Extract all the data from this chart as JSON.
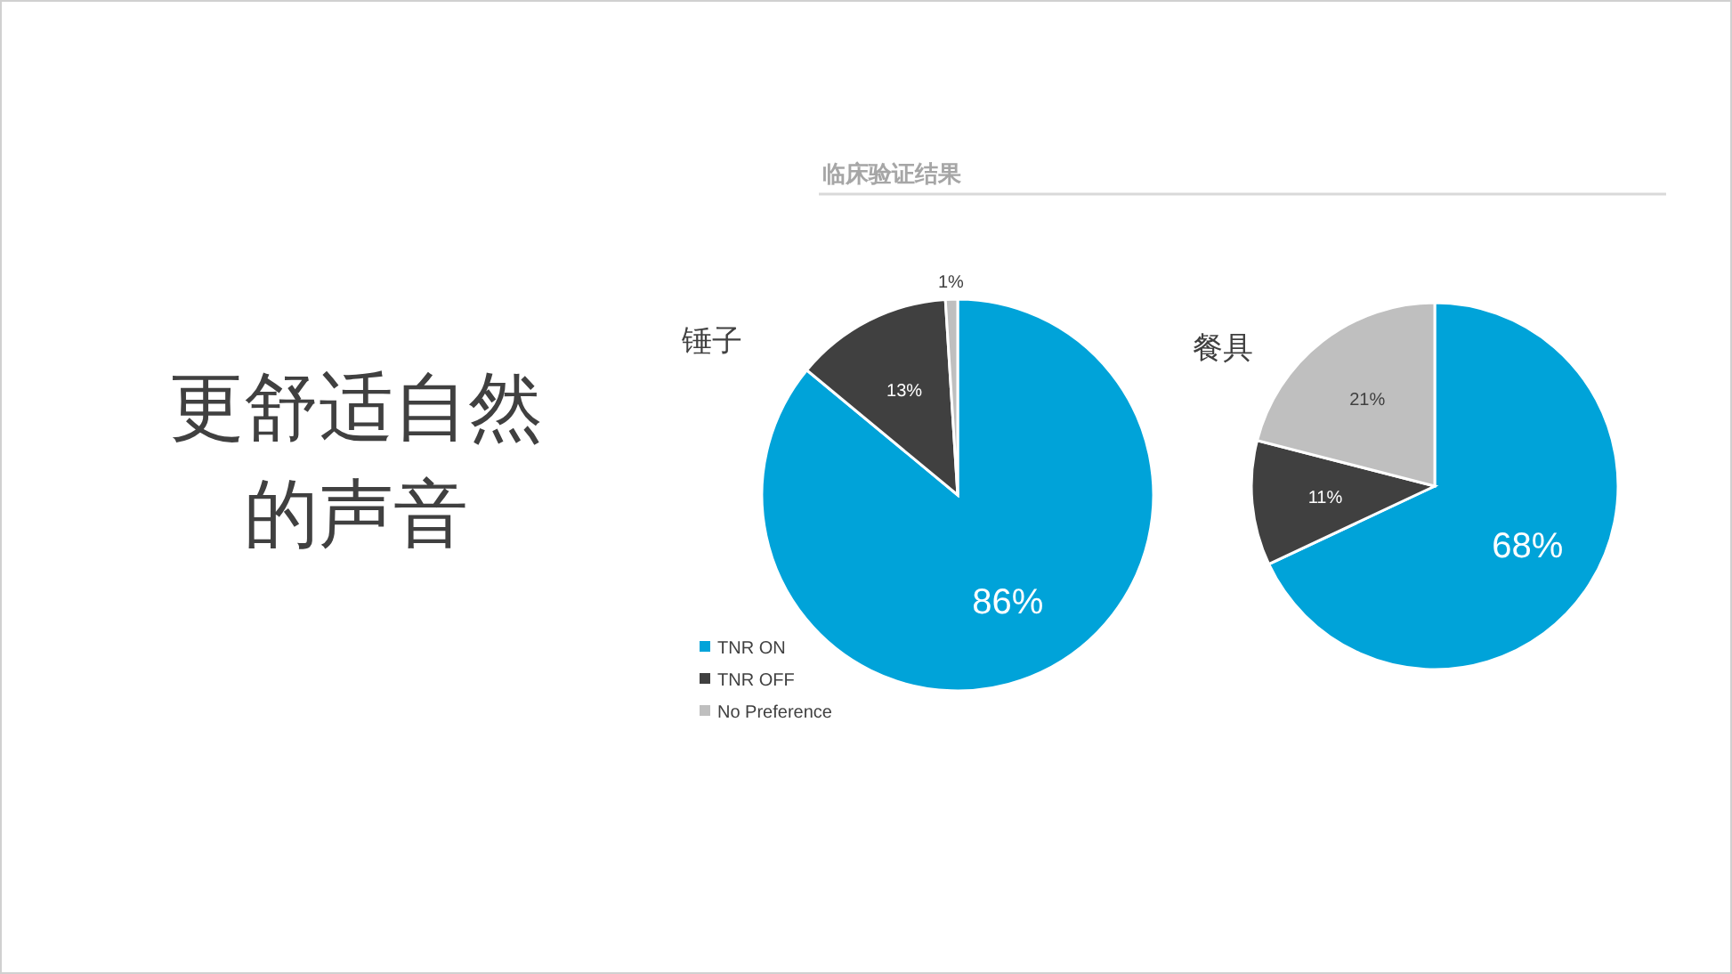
{
  "chart_data": [
    {
      "type": "other",
      "title": "更舒适自然的声音",
      "subtitle": "临床验证结果"
    },
    {
      "type": "pie",
      "title": "锤子",
      "categories": [
        "TNR ON",
        "TNR OFF",
        "No Preference"
      ],
      "values": [
        86,
        13,
        1
      ],
      "colors": [
        "#00a3d9",
        "#404040",
        "#bfbfbf"
      ],
      "value_labels": [
        "86%",
        "13%",
        "1%"
      ],
      "legend": "bottom left"
    },
    {
      "type": "pie",
      "title": "餐具",
      "categories": [
        null,
        null,
        null
      ],
      "values": [
        68,
        11,
        21
      ],
      "colors": [
        "#00a3d9",
        "#404040",
        "#bfbfbf"
      ],
      "value_labels": [
        "68%",
        "11%",
        "21%"
      ]
    }
  ]
}
